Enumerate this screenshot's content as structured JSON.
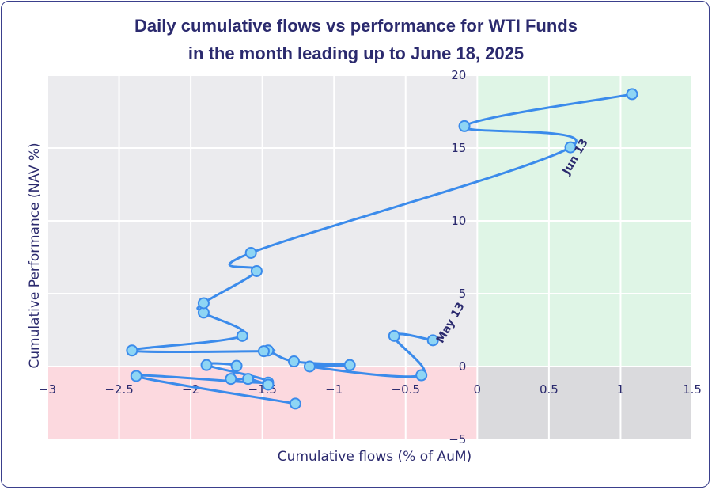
{
  "chart_data": {
    "type": "scatter",
    "title_line1": "Daily cumulative flows vs performance for WTI Funds",
    "title_line2": "in the month leading up to June 18, 2025",
    "xlabel": "Cumulative flows (% of AuM)",
    "ylabel": "Cumulative Performance (NAV %)",
    "xlim": [
      -3,
      1.5
    ],
    "ylim": [
      -5,
      20
    ],
    "x_ticks": [
      -3,
      -2.5,
      -2,
      -1.5,
      -1,
      -0.5,
      0,
      0.5,
      1,
      1.5
    ],
    "x_tick_labels": [
      "−3",
      "−2.5",
      "−2",
      "−1.5",
      "−1",
      "−0.5",
      "0",
      "0.5",
      "1",
      "1.5"
    ],
    "y_ticks": [
      -5,
      0,
      5,
      10,
      15,
      20
    ],
    "y_tick_labels": [
      "−5",
      "0",
      "5",
      "10",
      "15",
      "20"
    ],
    "grid": true,
    "quadrant_colors": {
      "top_left": "#ebebee",
      "top_right": "#dff5e6",
      "bottom_left": "#fcd9df",
      "bottom_right": "#dadadd"
    },
    "line_color": "#3b8beb",
    "marker_fill": "#8ed5f4",
    "marker_edge": "#3b8beb",
    "series": [
      {
        "points": [
          [
            -0.31,
            1.8
          ],
          [
            -0.58,
            2.1
          ],
          [
            -0.39,
            -0.6
          ],
          [
            -1.17,
            0.0
          ],
          [
            -0.89,
            0.1
          ],
          [
            -1.28,
            0.35
          ],
          [
            -1.46,
            1.1
          ],
          [
            -1.49,
            1.05
          ],
          [
            -2.41,
            1.1
          ],
          [
            -1.64,
            2.1
          ],
          [
            -1.91,
            3.7
          ],
          [
            -1.91,
            4.35
          ],
          [
            -1.54,
            6.55
          ],
          [
            -1.58,
            7.8
          ],
          [
            0.65,
            15.05
          ],
          [
            -0.09,
            16.5
          ],
          [
            1.08,
            18.7
          ]
        ]
      },
      {
        "points": [
          [
            -1.27,
            -2.55
          ],
          [
            -2.38,
            -0.65
          ],
          [
            -1.46,
            -1.1
          ],
          [
            -1.89,
            0.1
          ],
          [
            -1.68,
            0.05
          ],
          [
            -1.72,
            -0.85
          ],
          [
            -1.6,
            -0.85
          ],
          [
            -1.46,
            -1.25
          ]
        ]
      }
    ],
    "annotations": [
      {
        "text": "May 13",
        "x": -0.31,
        "y": 1.8
      },
      {
        "text": "Jun 13",
        "x": 0.65,
        "y": 15.05
      }
    ]
  }
}
